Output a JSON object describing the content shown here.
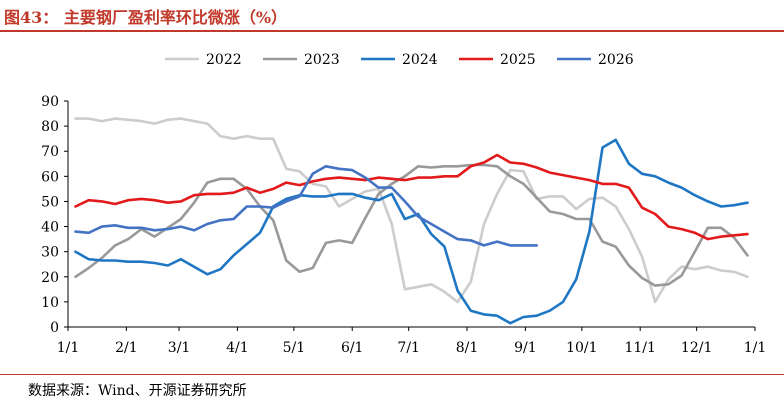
{
  "header": {
    "title": "图43：  主要钢厂盈利率环比微涨（%）"
  },
  "footer": {
    "source": "数据来源：Wind、开源证券研究所"
  },
  "colors": {
    "accent": "#c0392b",
    "axis": "#000000"
  },
  "chart_data": {
    "type": "line",
    "title": "",
    "xlabel": "",
    "ylabel": "",
    "ylim": [
      0,
      90
    ],
    "yticks": [
      0,
      10,
      20,
      30,
      40,
      50,
      60,
      70,
      80,
      90
    ],
    "xlim": [
      1,
      366
    ],
    "xtick_labels": [
      "1/1",
      "2/1",
      "3/1",
      "4/1",
      "5/1",
      "6/1",
      "7/1",
      "8/1",
      "9/1",
      "10/1",
      "11/1",
      "12/1",
      "1/1"
    ],
    "xtick_days": [
      1,
      32,
      60,
      91,
      121,
      152,
      182,
      213,
      244,
      274,
      305,
      335,
      366
    ],
    "grid": false,
    "legend_position": "top",
    "series": [
      {
        "name": "2022",
        "color": "#cccccc",
        "x": [
          5,
          12,
          19,
          26,
          33,
          40,
          47,
          54,
          61,
          68,
          75,
          82,
          89,
          96,
          103,
          110,
          117,
          124,
          131,
          138,
          145,
          152,
          159,
          166,
          173,
          180,
          187,
          194,
          201,
          208,
          215,
          222,
          229,
          236,
          243,
          250,
          257,
          264,
          271,
          278,
          285,
          292,
          299,
          306,
          313,
          320,
          327,
          334,
          341,
          348,
          355,
          362
        ],
        "y": [
          83,
          83,
          82,
          83,
          82.5,
          82,
          81,
          82.5,
          83,
          82,
          81,
          76,
          75,
          76,
          75,
          75,
          63,
          62,
          57,
          56,
          48,
          51,
          54,
          55,
          41,
          15,
          16,
          17,
          14,
          10,
          18,
          41,
          53,
          62.5,
          62,
          51,
          52,
          52,
          47,
          51,
          51.5,
          48,
          39,
          28,
          10,
          19,
          24,
          23,
          24,
          22.5,
          22,
          20
        ]
      },
      {
        "name": "2023",
        "color": "#999999",
        "x": [
          5,
          12,
          19,
          26,
          33,
          40,
          47,
          54,
          61,
          68,
          75,
          82,
          89,
          96,
          103,
          110,
          117,
          124,
          131,
          138,
          145,
          152,
          159,
          166,
          173,
          180,
          187,
          194,
          201,
          208,
          215,
          222,
          229,
          236,
          243,
          250,
          257,
          264,
          271,
          278,
          285,
          292,
          299,
          306,
          313,
          320,
          327,
          334,
          341,
          348,
          355,
          362
        ],
        "y": [
          20,
          23.5,
          27.5,
          32.5,
          35,
          39,
          36,
          39.5,
          43,
          49.5,
          57.5,
          59,
          59,
          55,
          48,
          42.5,
          26.5,
          22,
          23.5,
          33.5,
          34.5,
          33.5,
          43.5,
          53,
          57,
          60,
          64,
          63.5,
          64,
          64,
          64.5,
          64.5,
          64,
          60,
          57,
          51.5,
          46,
          45,
          43,
          43,
          34,
          32,
          24.5,
          19.5,
          16.5,
          17,
          20.5,
          30,
          39.5,
          39.5,
          35.5,
          28.5
        ]
      },
      {
        "name": "2024",
        "color": "#1f77c4",
        "x": [
          5,
          12,
          19,
          26,
          33,
          40,
          47,
          54,
          61,
          68,
          75,
          82,
          89,
          96,
          103,
          110,
          117,
          124,
          131,
          138,
          145,
          152,
          159,
          166,
          173,
          180,
          187,
          194,
          201,
          208,
          215,
          222,
          229,
          236,
          243,
          250,
          257,
          264,
          271,
          278,
          285,
          292,
          299,
          306,
          313,
          320,
          327,
          334,
          341,
          348,
          355,
          362
        ],
        "y": [
          30,
          27,
          26.5,
          26.5,
          26,
          26,
          25.5,
          24.5,
          27,
          24,
          21,
          23,
          28.5,
          33,
          37.5,
          48,
          51,
          52.5,
          52,
          52,
          53,
          53,
          51.5,
          50.5,
          53,
          43,
          45,
          37,
          32,
          14.5,
          6.5,
          5,
          4.5,
          1.5,
          4,
          4.5,
          6.5,
          10,
          19,
          38,
          71.5,
          74.5,
          65,
          61,
          60,
          57.5,
          55.5,
          52.5,
          50,
          48,
          48.5,
          49.5
        ]
      },
      {
        "name": "2025",
        "color": "#e31a1c",
        "x": [
          5,
          12,
          19,
          26,
          33,
          40,
          47,
          54,
          61,
          68,
          75,
          82,
          89,
          96,
          103,
          110,
          117,
          124,
          131,
          138,
          145,
          152,
          159,
          166,
          173,
          180,
          187,
          194,
          201,
          208,
          215,
          222,
          229,
          236,
          243,
          250,
          257,
          264,
          271,
          278,
          285,
          292,
          299,
          306,
          313,
          320,
          327,
          334,
          341,
          348,
          355,
          362
        ],
        "y": [
          48,
          50.5,
          50,
          49,
          50.5,
          51,
          50.5,
          49.5,
          50,
          52.5,
          53,
          53,
          53.5,
          55.5,
          53.5,
          55,
          57.5,
          56.5,
          58,
          59,
          59.5,
          59,
          58.5,
          59.5,
          59,
          58.5,
          59.5,
          59.5,
          60,
          60,
          64,
          65.5,
          68.5,
          65.5,
          65,
          63.5,
          61.5,
          60.5,
          59.5,
          58.5,
          57,
          57,
          55.5,
          47.5,
          45,
          40,
          39,
          37.5,
          35,
          36,
          36.5,
          37
        ]
      },
      {
        "name": "2026",
        "color": "#4472c4",
        "x": [
          5,
          12,
          19,
          26,
          33,
          40,
          47,
          54,
          61,
          68,
          75,
          82,
          89,
          96,
          103,
          110,
          117,
          124,
          131,
          138,
          145,
          152,
          159,
          166,
          173,
          180,
          187,
          194,
          201,
          208,
          215,
          222,
          229,
          236,
          243,
          250
        ],
        "y": [
          38,
          37.5,
          40,
          40.5,
          39.5,
          39.5,
          38.5,
          39,
          40,
          38.5,
          41,
          42.5,
          43,
          48,
          48,
          47.5,
          50,
          52,
          61,
          64,
          63,
          62.5,
          59.5,
          55.5,
          55.5,
          50,
          44,
          41,
          38,
          35,
          34.5,
          32.5,
          34,
          32.5,
          32.5,
          32.5
        ]
      }
    ]
  }
}
